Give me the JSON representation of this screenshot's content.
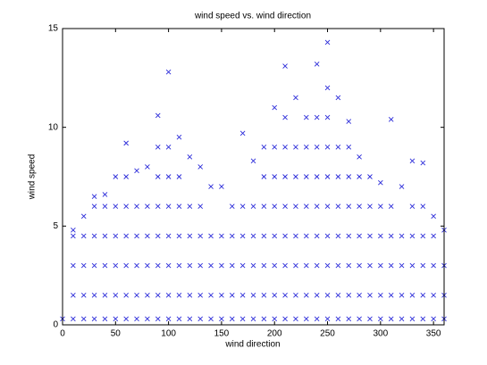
{
  "chart_data": {
    "type": "scatter",
    "title": "wind speed vs. wind direction",
    "x_label": "wind direction",
    "y_label": "wind speed",
    "marker": "x",
    "color": "#2b2bd9",
    "xlim": [
      0,
      360
    ],
    "xticks": [
      0,
      50,
      100,
      150,
      200,
      250,
      300,
      350
    ],
    "ylim": [
      0,
      15
    ],
    "yticks": [
      0,
      5,
      10,
      15
    ],
    "x": [
      0,
      10,
      10,
      10,
      10,
      10,
      20,
      20,
      20,
      20,
      20,
      30,
      30,
      30,
      30,
      30,
      30,
      40,
      40,
      40,
      40,
      40,
      40,
      50,
      50,
      50,
      50,
      50,
      50,
      60,
      60,
      60,
      60,
      60,
      60,
      60,
      70,
      70,
      70,
      70,
      70,
      70,
      80,
      80,
      80,
      80,
      80,
      80,
      90,
      90,
      90,
      90,
      90,
      90,
      90,
      90,
      100,
      100,
      100,
      100,
      100,
      100,
      100,
      100,
      110,
      110,
      110,
      110,
      110,
      110,
      110,
      120,
      120,
      120,
      120,
      120,
      120,
      130,
      130,
      130,
      130,
      130,
      130,
      140,
      140,
      140,
      140,
      140,
      150,
      150,
      150,
      150,
      150,
      160,
      160,
      160,
      160,
      160,
      170,
      170,
      170,
      170,
      170,
      170,
      180,
      180,
      180,
      180,
      180,
      180,
      190,
      190,
      190,
      190,
      190,
      190,
      190,
      200,
      200,
      200,
      200,
      200,
      200,
      200,
      200,
      210,
      210,
      210,
      210,
      210,
      210,
      210,
      210,
      210,
      220,
      220,
      220,
      220,
      220,
      220,
      220,
      220,
      230,
      230,
      230,
      230,
      230,
      230,
      230,
      230,
      240,
      240,
      240,
      240,
      240,
      240,
      240,
      240,
      240,
      250,
      250,
      250,
      250,
      250,
      250,
      250,
      250,
      250,
      250,
      260,
      260,
      260,
      260,
      260,
      260,
      260,
      260,
      270,
      270,
      270,
      270,
      270,
      270,
      270,
      270,
      280,
      280,
      280,
      280,
      280,
      280,
      280,
      290,
      290,
      290,
      290,
      290,
      290,
      300,
      300,
      300,
      300,
      300,
      300,
      310,
      310,
      310,
      310,
      310,
      310,
      320,
      320,
      320,
      320,
      320,
      330,
      330,
      330,
      330,
      330,
      330,
      340,
      340,
      340,
      340,
      340,
      340,
      350,
      350,
      350,
      350,
      350,
      360,
      360,
      360,
      360
    ],
    "values": [
      0.3,
      0.3,
      1.5,
      3,
      4.5,
      4.8,
      0.3,
      1.5,
      3,
      4.5,
      5.5,
      0.3,
      1.5,
      3,
      4.5,
      6,
      6.5,
      0.3,
      1.5,
      3,
      4.5,
      6,
      6.6,
      0.3,
      1.5,
      3,
      4.5,
      6,
      7.5,
      0.3,
      1.5,
      3,
      4.5,
      6,
      7.5,
      9.2,
      0.3,
      1.5,
      3,
      4.5,
      6,
      7.8,
      0.3,
      1.5,
      3,
      4.5,
      6,
      8,
      0.3,
      1.5,
      3,
      4.5,
      6,
      7.5,
      9,
      10.6,
      0.3,
      1.5,
      3,
      4.5,
      6,
      7.5,
      9,
      12.8,
      0.3,
      1.5,
      3,
      4.5,
      6,
      7.5,
      9.5,
      0.3,
      1.5,
      3,
      4.5,
      6,
      8.5,
      0.3,
      1.5,
      3,
      4.5,
      6,
      8,
      0.3,
      1.5,
      3,
      4.5,
      7,
      0.3,
      1.5,
      3,
      4.5,
      7,
      0.3,
      1.5,
      3,
      4.5,
      6,
      0.3,
      1.5,
      3,
      4.5,
      6,
      9.7,
      0.3,
      1.5,
      3,
      4.5,
      6,
      8.3,
      0.3,
      1.5,
      3,
      4.5,
      6,
      7.5,
      9,
      0.3,
      1.5,
      3,
      4.5,
      6,
      7.5,
      9,
      11,
      0.3,
      1.5,
      3,
      4.5,
      6,
      7.5,
      9,
      10.5,
      13.1,
      0.3,
      1.5,
      3,
      4.5,
      6,
      7.5,
      9,
      11.5,
      0.3,
      1.5,
      3,
      4.5,
      6,
      7.5,
      9,
      10.5,
      0.3,
      1.5,
      3,
      4.5,
      6,
      7.5,
      9,
      10.5,
      13.2,
      0.3,
      1.5,
      3,
      4.5,
      6,
      7.5,
      9,
      10.5,
      12,
      14.3,
      0.3,
      1.5,
      3,
      4.5,
      6,
      7.5,
      9,
      11.5,
      0.3,
      1.5,
      3,
      4.5,
      6,
      7.5,
      9,
      10.3,
      0.3,
      1.5,
      3,
      4.5,
      6,
      7.5,
      8.5,
      0.3,
      1.5,
      3,
      4.5,
      6,
      7.5,
      0.3,
      1.5,
      3,
      4.5,
      6,
      7.2,
      0.3,
      1.5,
      3,
      4.5,
      6,
      10.4,
      0.3,
      1.5,
      3,
      4.5,
      7,
      0.3,
      1.5,
      3,
      4.5,
      6,
      8.3,
      0.3,
      1.5,
      3,
      4.5,
      6,
      8.2,
      0.3,
      1.5,
      3,
      4.5,
      5.5,
      0.3,
      1.5,
      3,
      4.8
    ]
  }
}
